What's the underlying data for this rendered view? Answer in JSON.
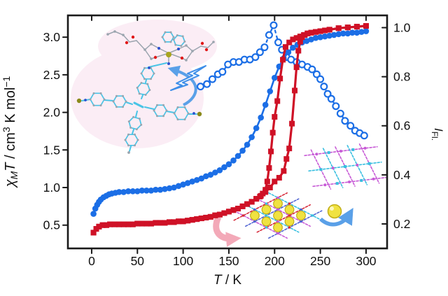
{
  "figure": {
    "title": "",
    "background": "#ffffff"
  },
  "colors": {
    "blue_series": "#1b6ee6",
    "red_series": "#cf1126",
    "open_series": "#1b6ee6",
    "frame": "#1a1a1a",
    "text": "#101010",
    "pink_blob": "#fbedf5",
    "cyan_bond": "#49c4e6",
    "gray_atom": "#9aa4ae",
    "nitrogen_blue": "#2b4fd0",
    "oxygen_red": "#e01818",
    "iron_olive": "#a8a41e",
    "iodine_olive": "#8a8a1a",
    "yellow_guest": "#f0e241",
    "yellow_edge": "#c2ae17",
    "light_blue_arrow": "#5aa0e8",
    "pink_arrow": "#f2a2b2",
    "lattice_red": "#d62839",
    "lattice_blue": "#4f63d2",
    "lattice_magenta": "#c75ad6",
    "lattice_cyan": "#38bfe0"
  },
  "chart_data": {
    "type": "line",
    "title": "",
    "grid": false,
    "legend": "none",
    "x_axis": {
      "label_parts": [
        [
          "T",
          "it"
        ],
        [
          " / K",
          "n"
        ]
      ],
      "range": [
        -26,
        323
      ],
      "ticks": [
        {
          "v": 0,
          "label": "0"
        },
        {
          "v": 50,
          "label": "50"
        },
        {
          "v": 100,
          "label": "100"
        },
        {
          "v": 150,
          "label": "150"
        },
        {
          "v": 200,
          "label": "200"
        },
        {
          "v": 250,
          "label": "250"
        },
        {
          "v": 300,
          "label": "300"
        }
      ]
    },
    "y_left": {
      "label_parts": [
        [
          "χ",
          "it"
        ],
        [
          "M",
          "itsub"
        ],
        [
          "T",
          "it"
        ],
        [
          " / cm",
          "n"
        ],
        [
          "3",
          "sup"
        ],
        [
          " K mol",
          "n"
        ],
        [
          "−1",
          "sup"
        ]
      ],
      "range": [
        0.19,
        3.29
      ],
      "ticks": [
        {
          "v": 0.5,
          "label": "0.5"
        },
        {
          "v": 1.0,
          "label": "1.0"
        },
        {
          "v": 1.5,
          "label": "1.5"
        },
        {
          "v": 2.0,
          "label": "2.0"
        },
        {
          "v": 2.5,
          "label": "2.5"
        },
        {
          "v": 3.0,
          "label": "3.0"
        }
      ]
    },
    "y_right": {
      "label_parts": [
        [
          "I",
          "it"
        ],
        [
          "Fl.",
          "sub"
        ]
      ],
      "range": [
        0.1,
        1.05
      ],
      "ticks": [
        {
          "v": 0.2,
          "label": "0.2"
        },
        {
          "v": 0.4,
          "label": "0.4"
        },
        {
          "v": 0.6,
          "label": "0.6"
        },
        {
          "v": 0.8,
          "label": "0.8"
        },
        {
          "v": 1.0,
          "label": "1.0"
        }
      ]
    },
    "series": [
      {
        "id": "fluorescence-intensity",
        "axis": "right",
        "marker": "circle-open",
        "line": "dashed",
        "color": "open_series",
        "points": [
          [
            119,
            0.76
          ],
          [
            126,
            0.77
          ],
          [
            132,
            0.79
          ],
          [
            138,
            0.81
          ],
          [
            143,
            0.82
          ],
          [
            149,
            0.85
          ],
          [
            155,
            0.86
          ],
          [
            161,
            0.86
          ],
          [
            167,
            0.87
          ],
          [
            173,
            0.87
          ],
          [
            179,
            0.88
          ],
          [
            184,
            0.9
          ],
          [
            189,
            0.92
          ],
          [
            194,
            0.97
          ],
          [
            199,
            1.01
          ],
          [
            204,
            0.94
          ],
          [
            208,
            0.91
          ],
          [
            213,
            0.88
          ],
          [
            218,
            0.87
          ],
          [
            224,
            0.86
          ],
          [
            230,
            0.85
          ],
          [
            236,
            0.84
          ],
          [
            241,
            0.83
          ],
          [
            246,
            0.81
          ],
          [
            250,
            0.79
          ],
          [
            254,
            0.76
          ],
          [
            258,
            0.73
          ],
          [
            262,
            0.71
          ],
          [
            267,
            0.68
          ],
          [
            272,
            0.65
          ],
          [
            277,
            0.62
          ],
          [
            283,
            0.6
          ],
          [
            288,
            0.58
          ],
          [
            293,
            0.57
          ],
          [
            298,
            0.56
          ]
        ]
      },
      {
        "id": "chiMT-gradual-blue",
        "axis": "left",
        "marker": "circle",
        "line": "solid",
        "color": "blue_series",
        "points": [
          [
            2,
            0.65
          ],
          [
            4,
            0.72
          ],
          [
            6,
            0.77
          ],
          [
            8,
            0.81
          ],
          [
            10,
            0.84
          ],
          [
            13,
            0.87
          ],
          [
            16,
            0.89
          ],
          [
            19,
            0.91
          ],
          [
            22,
            0.92
          ],
          [
            26,
            0.93
          ],
          [
            30,
            0.94
          ],
          [
            35,
            0.94
          ],
          [
            40,
            0.95
          ],
          [
            45,
            0.95
          ],
          [
            50,
            0.95
          ],
          [
            55,
            0.96
          ],
          [
            60,
            0.96
          ],
          [
            65,
            0.96
          ],
          [
            70,
            0.97
          ],
          [
            75,
            0.97
          ],
          [
            80,
            0.98
          ],
          [
            85,
            0.99
          ],
          [
            90,
            1.0
          ],
          [
            95,
            1.02
          ],
          [
            100,
            1.04
          ],
          [
            105,
            1.06
          ],
          [
            110,
            1.08
          ],
          [
            115,
            1.1
          ],
          [
            120,
            1.12
          ],
          [
            125,
            1.15
          ],
          [
            130,
            1.17
          ],
          [
            135,
            1.2
          ],
          [
            140,
            1.23
          ],
          [
            145,
            1.27
          ],
          [
            150,
            1.31
          ],
          [
            155,
            1.36
          ],
          [
            160,
            1.42
          ],
          [
            165,
            1.49
          ],
          [
            170,
            1.57
          ],
          [
            175,
            1.67
          ],
          [
            180,
            1.79
          ],
          [
            185,
            1.93
          ],
          [
            190,
            2.1
          ],
          [
            195,
            2.28
          ],
          [
            200,
            2.46
          ],
          [
            205,
            2.61
          ],
          [
            210,
            2.72
          ],
          [
            215,
            2.8
          ],
          [
            220,
            2.86
          ],
          [
            225,
            2.9
          ],
          [
            230,
            2.93
          ],
          [
            235,
            2.95
          ],
          [
            240,
            2.97
          ],
          [
            245,
            2.99
          ],
          [
            250,
            3.0
          ],
          [
            255,
            3.01
          ],
          [
            260,
            3.02
          ],
          [
            265,
            3.03
          ],
          [
            270,
            3.04
          ],
          [
            275,
            3.05
          ],
          [
            280,
            3.05
          ],
          [
            285,
            3.06
          ],
          [
            290,
            3.06
          ],
          [
            295,
            3.07
          ],
          [
            300,
            3.08
          ]
        ]
      },
      {
        "id": "chiMT-red-warming",
        "axis": "left",
        "marker": "square",
        "line": "solid",
        "color": "red_series",
        "points": [
          [
            2,
            0.4
          ],
          [
            5,
            0.45
          ],
          [
            8,
            0.48
          ],
          [
            12,
            0.5
          ],
          [
            16,
            0.5
          ],
          [
            20,
            0.51
          ],
          [
            25,
            0.51
          ],
          [
            30,
            0.51
          ],
          [
            35,
            0.51
          ],
          [
            40,
            0.51
          ],
          [
            45,
            0.51
          ],
          [
            50,
            0.52
          ],
          [
            55,
            0.52
          ],
          [
            60,
            0.52
          ],
          [
            65,
            0.52
          ],
          [
            70,
            0.53
          ],
          [
            75,
            0.53
          ],
          [
            80,
            0.53
          ],
          [
            85,
            0.54
          ],
          [
            90,
            0.54
          ],
          [
            95,
            0.55
          ],
          [
            100,
            0.55
          ],
          [
            105,
            0.56
          ],
          [
            110,
            0.57
          ],
          [
            115,
            0.58
          ],
          [
            120,
            0.59
          ],
          [
            125,
            0.6
          ],
          [
            130,
            0.61
          ],
          [
            135,
            0.63
          ],
          [
            140,
            0.64
          ],
          [
            145,
            0.66
          ],
          [
            150,
            0.68
          ],
          [
            155,
            0.7
          ],
          [
            160,
            0.72
          ],
          [
            165,
            0.75
          ],
          [
            170,
            0.78
          ],
          [
            175,
            0.81
          ],
          [
            180,
            0.85
          ],
          [
            185,
            0.89
          ],
          [
            190,
            0.94
          ],
          [
            195,
            1.0
          ],
          [
            200,
            1.08
          ],
          [
            205,
            1.13
          ],
          [
            210,
            1.22
          ],
          [
            213,
            1.38
          ],
          [
            216,
            1.52
          ],
          [
            219,
            1.85
          ],
          [
            222,
            2.29
          ],
          [
            224,
            2.6
          ],
          [
            226,
            2.82
          ],
          [
            228,
            2.94
          ],
          [
            230,
            3.0
          ],
          [
            233,
            3.03
          ],
          [
            236,
            3.05
          ],
          [
            240,
            3.06
          ],
          [
            245,
            3.07
          ],
          [
            250,
            3.08
          ],
          [
            255,
            3.09
          ],
          [
            260,
            3.1
          ],
          [
            270,
            3.12
          ],
          [
            280,
            3.13
          ],
          [
            290,
            3.14
          ],
          [
            300,
            3.15
          ]
        ]
      },
      {
        "id": "chiMT-red-cooling",
        "axis": "left",
        "marker": "square",
        "line": "solid",
        "color": "red_series",
        "points": [
          [
            300,
            3.15
          ],
          [
            290,
            3.14
          ],
          [
            280,
            3.13
          ],
          [
            270,
            3.12
          ],
          [
            260,
            3.1
          ],
          [
            250,
            3.08
          ],
          [
            245,
            3.07
          ],
          [
            240,
            3.06
          ],
          [
            236,
            3.05
          ],
          [
            232,
            3.03
          ],
          [
            228,
            3.01
          ],
          [
            224,
            2.99
          ],
          [
            220,
            2.97
          ],
          [
            216,
            2.93
          ],
          [
            212,
            2.87
          ],
          [
            209,
            2.7
          ],
          [
            206,
            2.45
          ],
          [
            203,
            2.15
          ],
          [
            200,
            1.94
          ],
          [
            198,
            1.73
          ],
          [
            196,
            1.48
          ],
          [
            194,
            1.26
          ],
          [
            192,
            1.08
          ],
          [
            190,
            0.97
          ],
          [
            187,
            0.92
          ],
          [
            184,
            0.88
          ],
          [
            180,
            0.85
          ],
          [
            175,
            0.81
          ],
          [
            170,
            0.78
          ],
          [
            165,
            0.75
          ],
          [
            160,
            0.72
          ],
          [
            155,
            0.7
          ],
          [
            150,
            0.68
          ],
          [
            145,
            0.66
          ],
          [
            140,
            0.64
          ],
          [
            135,
            0.63
          ],
          [
            130,
            0.61
          ],
          [
            125,
            0.6
          ],
          [
            120,
            0.59
          ],
          [
            115,
            0.58
          ],
          [
            110,
            0.57
          ],
          [
            105,
            0.56
          ],
          [
            100,
            0.55
          ],
          [
            95,
            0.55
          ],
          [
            90,
            0.54
          ],
          [
            85,
            0.54
          ],
          [
            80,
            0.53
          ],
          [
            75,
            0.53
          ],
          [
            70,
            0.53
          ],
          [
            65,
            0.52
          ],
          [
            60,
            0.52
          ],
          [
            55,
            0.52
          ],
          [
            50,
            0.52
          ],
          [
            45,
            0.51
          ],
          [
            40,
            0.51
          ],
          [
            35,
            0.51
          ],
          [
            30,
            0.51
          ],
          [
            25,
            0.51
          ],
          [
            20,
            0.51
          ],
          [
            16,
            0.5
          ],
          [
            12,
            0.5
          ],
          [
            8,
            0.48
          ],
          [
            5,
            0.45
          ],
          [
            2,
            0.4
          ]
        ]
      }
    ]
  },
  "illustrations": {
    "iron_complex": "iron-complex-molecule",
    "tetraaryl_ligand": "tetraaryl-pyridyl-ligand-molecule",
    "excitation": "lightning-icon",
    "rotation": "curved-arrow-icon",
    "framework_with_guests": "framework-lattice-with-guest-spheres",
    "framework_empty": "framework-lattice-empty",
    "guest_sphere": "guest-sphere-icon",
    "guest_release_arrow": "release-arrow-icon",
    "transformation_arrow": "pink-curved-arrow-icon"
  }
}
